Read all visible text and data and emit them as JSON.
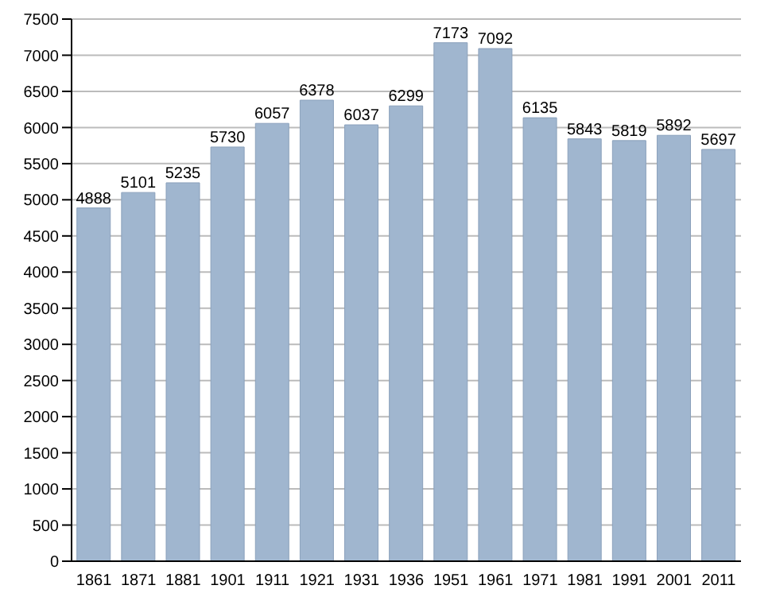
{
  "chart_data": {
    "type": "bar",
    "categories": [
      "1861",
      "1871",
      "1881",
      "1901",
      "1911",
      "1921",
      "1931",
      "1936",
      "1951",
      "1961",
      "1971",
      "1981",
      "1991",
      "2001",
      "2011"
    ],
    "values": [
      4888,
      5101,
      5235,
      5730,
      6057,
      6378,
      6037,
      6299,
      7173,
      7092,
      6135,
      5843,
      5819,
      5892,
      5697
    ],
    "color": "#a0b6cf",
    "ylim": [
      0,
      7500
    ],
    "yticks": [
      0,
      500,
      1000,
      1500,
      2000,
      2500,
      3000,
      3500,
      4000,
      4500,
      5000,
      5500,
      6000,
      6500,
      7000,
      7500
    ],
    "grid": "y",
    "data_labels": true
  }
}
